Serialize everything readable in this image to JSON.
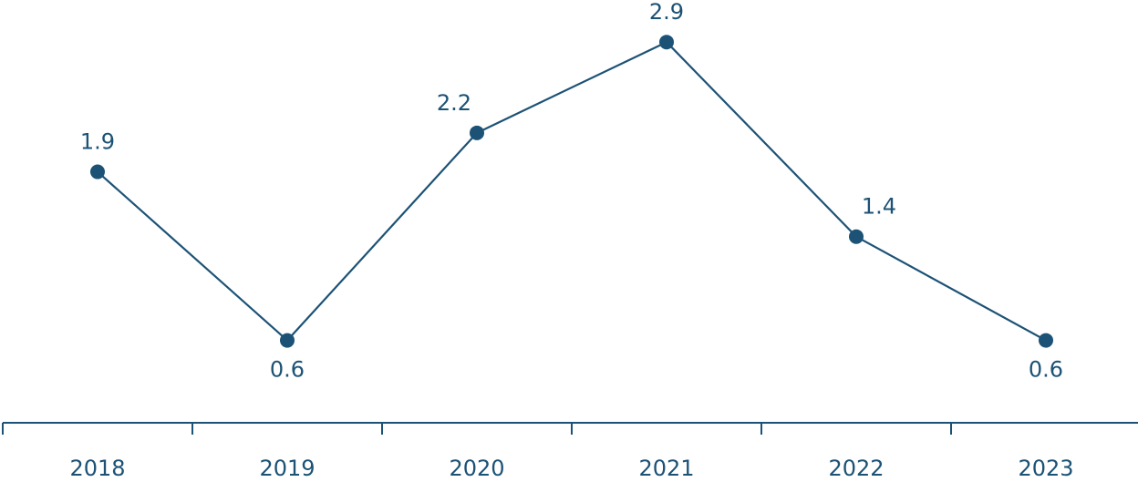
{
  "chart_data": {
    "type": "line",
    "title": "",
    "xlabel": "",
    "ylabel": "",
    "categories": [
      "2018",
      "2019",
      "2020",
      "2021",
      "2022",
      "2023"
    ],
    "series": [
      {
        "values": [
          1.9,
          0.6,
          2.2,
          2.9,
          1.4,
          0.6
        ],
        "labels": [
          "1.9",
          "0.6",
          "2.2",
          "2.9",
          "1.4",
          "0.6"
        ]
      }
    ],
    "ylim": [
      0,
      3.2
    ],
    "grid": false,
    "legend": "none",
    "colors": {
      "line": "#1c5275",
      "text": "#1c5275"
    }
  }
}
